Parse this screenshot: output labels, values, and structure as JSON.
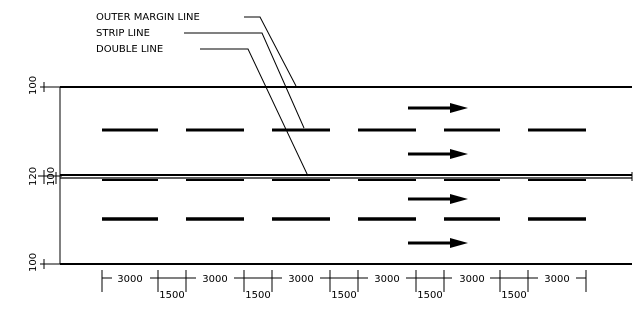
{
  "callouts": {
    "outer_margin": "OUTER MARGIN LINE",
    "strip": "STRIP LINE",
    "double": "DOUBLE LINE"
  },
  "left_dims": {
    "top_margin": "100",
    "median": "120",
    "median_inner": "100",
    "bottom_margin": "100"
  },
  "bottom_dims": {
    "dash_lengths": [
      "3000",
      "3000",
      "3000",
      "3000",
      "3000",
      "3000"
    ],
    "gap_lengths": [
      "1500",
      "1500",
      "1500",
      "1500",
      "1500"
    ]
  },
  "colors": {
    "ink": "#000000",
    "paper": "#ffffff"
  }
}
